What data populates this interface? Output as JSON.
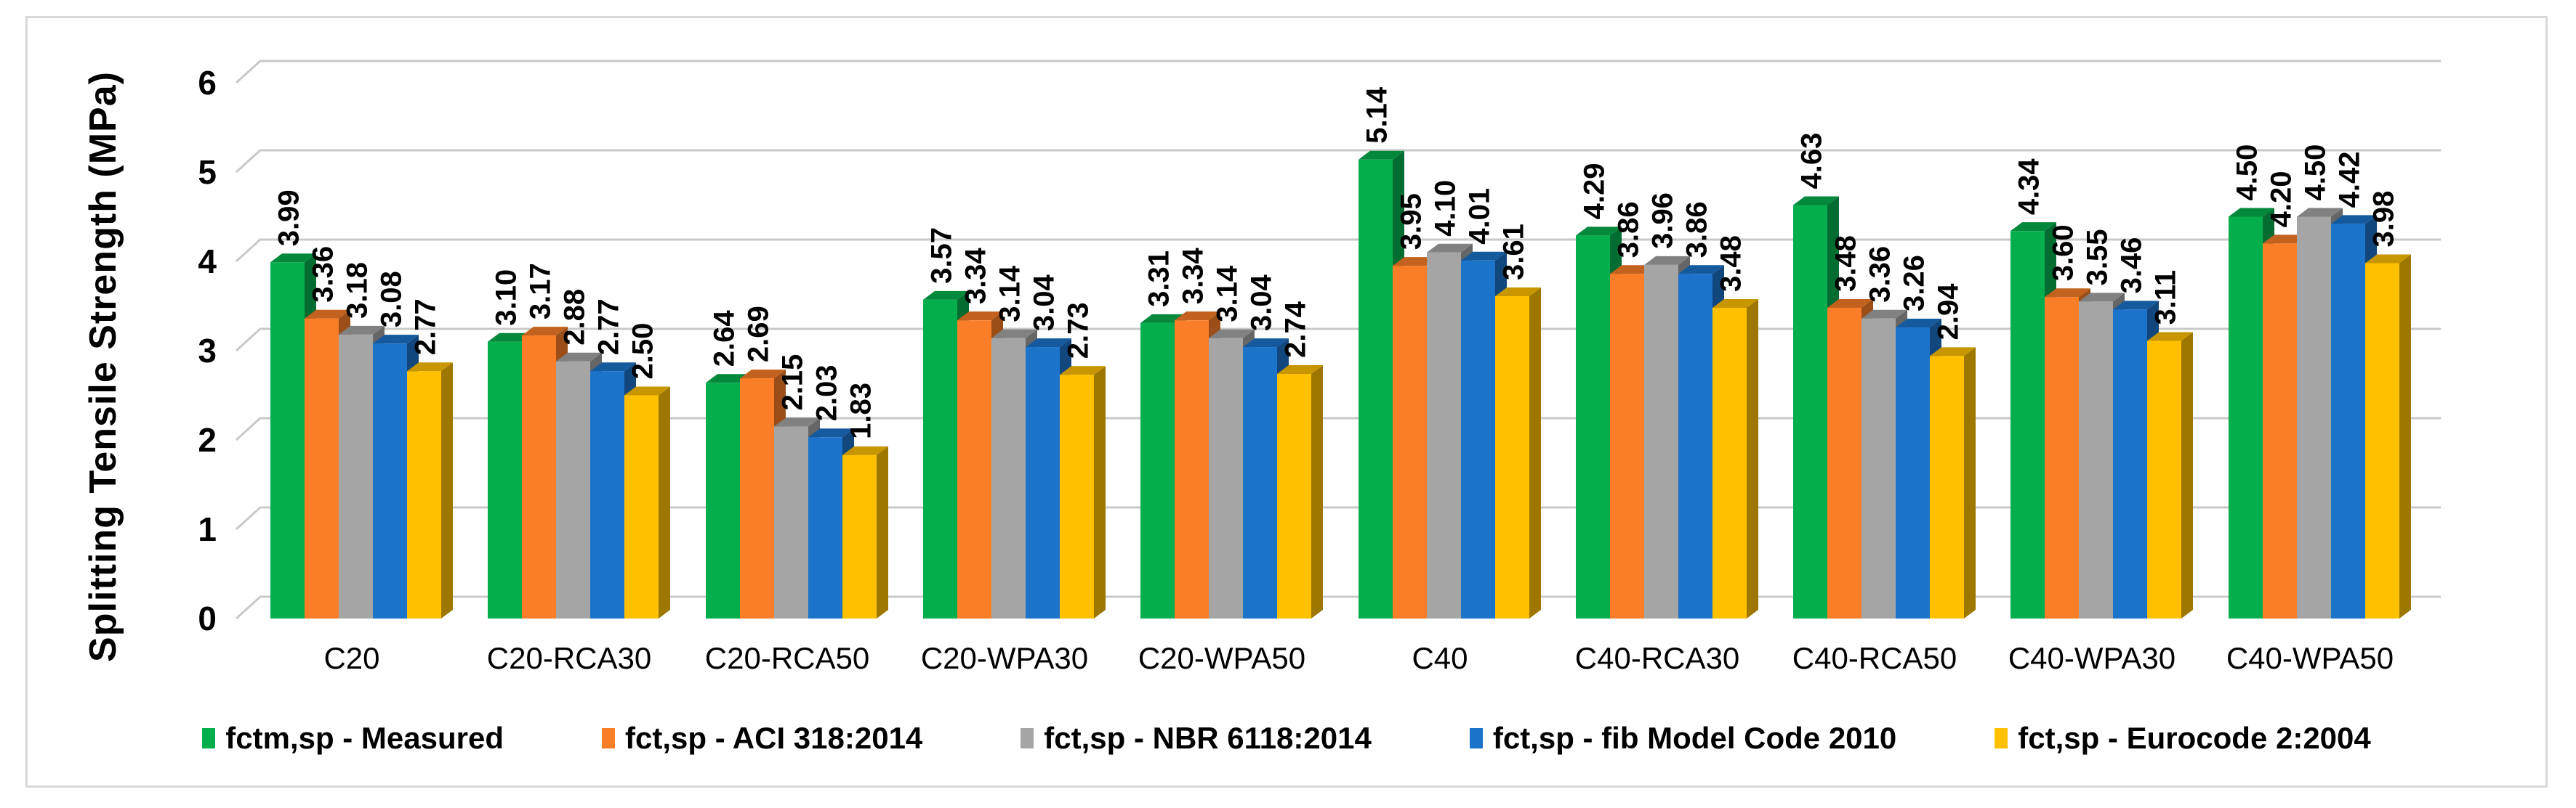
{
  "figure": {
    "background_color": "#FFFFFF",
    "frame_border_color": "#D8D8D8",
    "gridline_color": "#C9C9C9",
    "text_color": "#000000"
  },
  "chart_data": {
    "type": "bar",
    "style": "3d-effect-clustered-column",
    "title": "",
    "xlabel": "",
    "ylabel": "Splitting Tensile Strength (MPa)",
    "ylim": [
      0,
      6
    ],
    "ytick_interval": 1,
    "ytick_labels": [
      "0",
      "1",
      "2",
      "3",
      "4",
      "5",
      "6"
    ],
    "grid": true,
    "legend_position": "bottom",
    "value_labels": "rotated-90-above-bars",
    "value_label_format": "0.00",
    "categories": [
      "C20",
      "C20-RCA30",
      "C20-RCA50",
      "C20-WPA30",
      "C20-WPA50",
      "C40",
      "C40-RCA30",
      "C40-RCA50",
      "C40-WPA30",
      "C40-WPA50"
    ],
    "series": [
      {
        "name": "fctm,sp - Measured",
        "color": "#05AE4D",
        "values": [
          3.99,
          3.1,
          2.64,
          3.57,
          3.31,
          5.14,
          4.29,
          4.63,
          4.34,
          4.5
        ]
      },
      {
        "name": "fct,sp - ACI 318:2014",
        "color": "#FA7D27",
        "values": [
          3.36,
          3.17,
          2.69,
          3.34,
          3.34,
          3.95,
          3.86,
          3.48,
          3.6,
          4.2
        ]
      },
      {
        "name": "fct,sp - NBR 6118:2014",
        "color": "#A5A5A5",
        "values": [
          3.18,
          2.88,
          2.15,
          3.14,
          3.14,
          4.1,
          3.96,
          3.36,
          3.55,
          4.5
        ]
      },
      {
        "name": "fct,sp - fib Model Code 2010",
        "color": "#1C73CA",
        "values": [
          3.08,
          2.77,
          2.03,
          3.04,
          3.04,
          4.01,
          3.86,
          3.26,
          3.46,
          4.42
        ]
      },
      {
        "name": "fct,sp - Eurocode 2:2004",
        "color": "#FFC000",
        "values": [
          2.77,
          2.5,
          1.83,
          2.73,
          2.74,
          3.61,
          3.48,
          2.94,
          3.11,
          3.98
        ]
      }
    ]
  }
}
